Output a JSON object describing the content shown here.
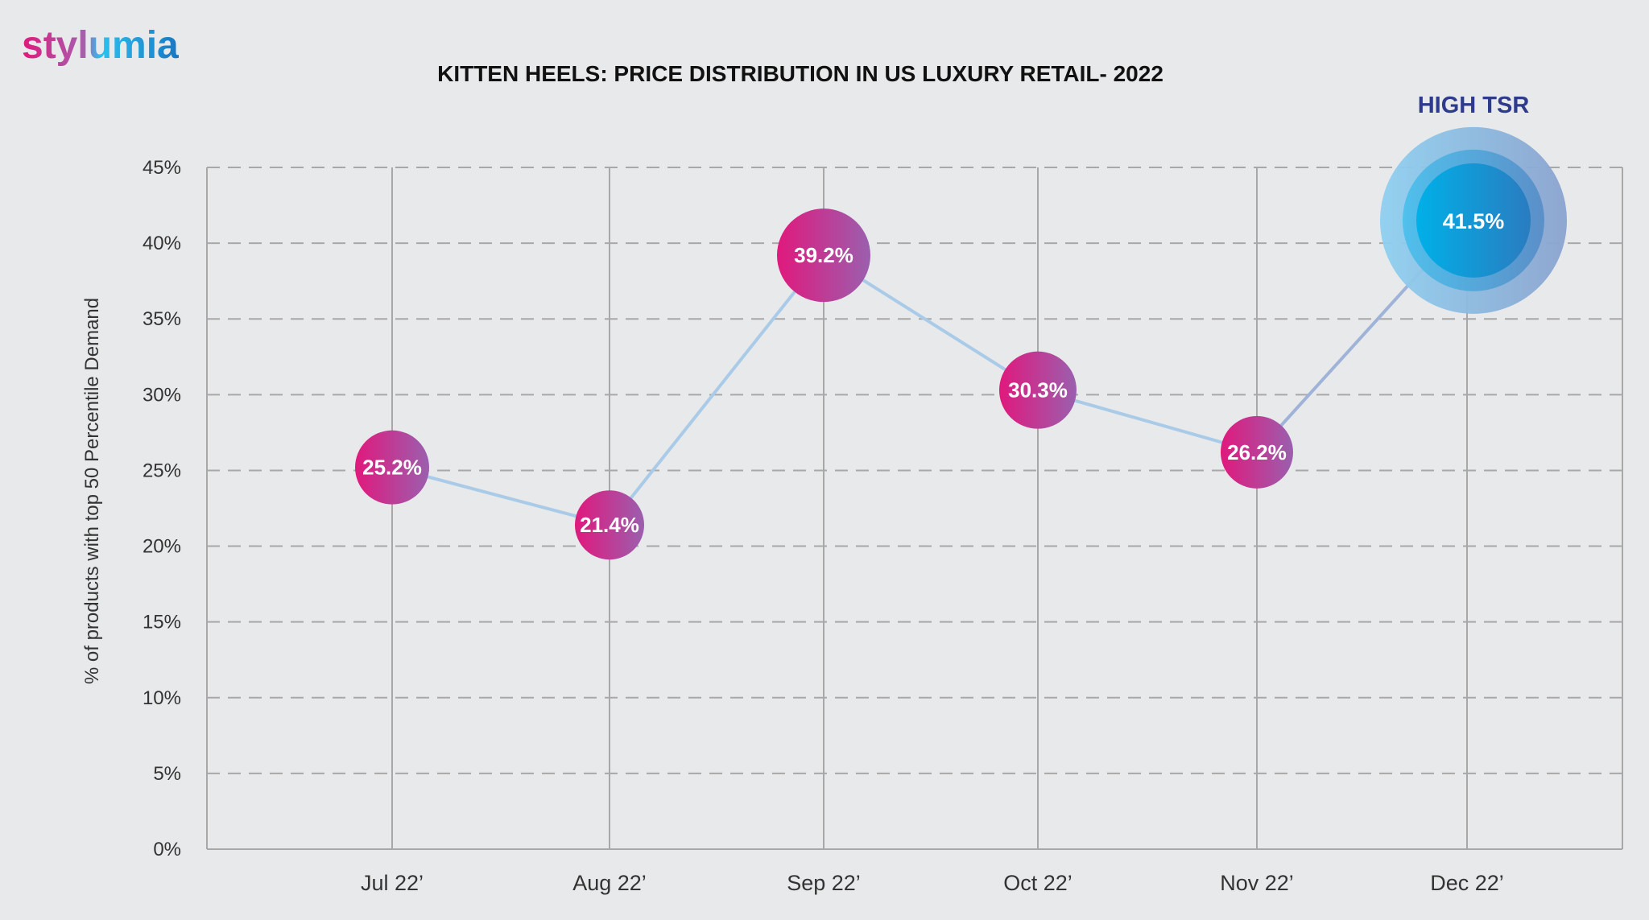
{
  "logo": "stylumia",
  "chart_data": {
    "type": "line",
    "title": "KITTEN HEELS: PRICE DISTRIBUTION IN US LUXURY RETAIL- 2022",
    "ylabel": "% of products with top 50 Percentile Demand",
    "xlabel": "",
    "categories": [
      "Jul 22’",
      "Aug 22’",
      "Sep 22’",
      "Oct 22’",
      "Nov 22’",
      "Dec 22’"
    ],
    "values": [
      25.2,
      21.4,
      39.2,
      30.3,
      26.2,
      41.5
    ],
    "data_labels": [
      "25.2%",
      "21.4%",
      "39.2%",
      "30.3%",
      "26.2%",
      "41.5%"
    ],
    "ylim": [
      0,
      45
    ],
    "yticks": [
      "0%",
      "5%",
      "10%",
      "15%",
      "20%",
      "25%",
      "30%",
      "35%",
      "40%",
      "45%"
    ],
    "grid": "horizontal dashed, vertical solid",
    "annotation": "HIGH TSR",
    "highlight_index": 5,
    "colors": {
      "bubble_start": "#e0197d",
      "bubble_end": "#9b5fae",
      "highlight": "#00a8e0",
      "line": "#a9cbe8",
      "annotation": "#2e3a8c"
    }
  }
}
